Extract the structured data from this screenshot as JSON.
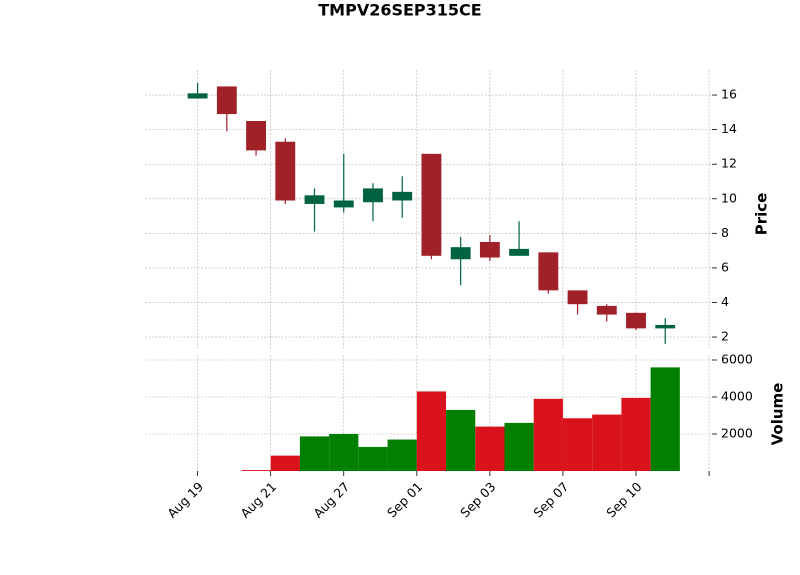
{
  "chart_data": {
    "type": "candlestick",
    "title": "TMPV26SEP315CE",
    "x": [
      0,
      1,
      2,
      3,
      4,
      5,
      6,
      7,
      8,
      9,
      10,
      11,
      12,
      13,
      14,
      15,
      16
    ],
    "open": [
      15.8,
      16.5,
      14.5,
      13.3,
      9.7,
      9.5,
      9.8,
      9.9,
      12.6,
      6.5,
      7.5,
      6.7,
      6.9,
      4.7,
      3.8,
      3.4,
      2.5
    ],
    "high": [
      16.7,
      16.5,
      14.5,
      13.5,
      10.6,
      12.6,
      10.9,
      11.3,
      12.6,
      7.8,
      7.9,
      8.7,
      6.9,
      4.7,
      3.9,
      3.4,
      3.1
    ],
    "low": [
      15.8,
      13.9,
      12.5,
      9.7,
      8.1,
      9.2,
      8.7,
      8.9,
      6.5,
      5.0,
      6.4,
      6.7,
      4.5,
      3.3,
      2.9,
      2.4,
      1.6
    ],
    "close": [
      16.1,
      14.9,
      12.8,
      9.9,
      10.2,
      9.9,
      10.6,
      10.4,
      6.7,
      7.2,
      6.6,
      7.1,
      4.7,
      3.9,
      3.3,
      2.5,
      2.7
    ],
    "volume": [
      0,
      0,
      50,
      830,
      1870,
      2000,
      1300,
      1700,
      4300,
      3300,
      2400,
      2600,
      3900,
      2850,
      3050,
      3950,
      5600
    ],
    "up_color": "#006340",
    "down_color": "#a02128",
    "volume_up_color": "#007f00",
    "volume_down_color": "#d9121b",
    "ylabel": "Price",
    "y2label": "Volume",
    "xlim": [
      -1.8,
      17.6
    ],
    "xticks": [
      {
        "value": 0,
        "label": "Aug 19"
      },
      {
        "value": 2.5,
        "label": "Aug 21"
      },
      {
        "value": 5,
        "label": "Aug 27"
      },
      {
        "value": 7.5,
        "label": "Sep 01"
      },
      {
        "value": 10,
        "label": "Sep 03"
      },
      {
        "value": 12.5,
        "label": "Sep 07"
      },
      {
        "value": 15,
        "label": "Sep 10"
      },
      {
        "value": 17.5,
        "label": null
      }
    ],
    "ylim": [
      1.25,
      17.45
    ],
    "yticks": [
      2,
      4,
      6,
      8,
      10,
      12,
      14,
      16
    ],
    "y2lim": [
      0,
      6270
    ],
    "y2ticks": [
      2000,
      4000,
      6000
    ],
    "grid": true
  }
}
